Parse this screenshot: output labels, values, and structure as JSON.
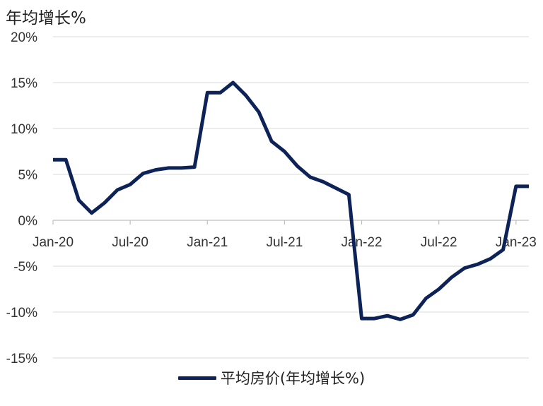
{
  "chart_data": {
    "type": "line",
    "unit_label": "年均增长%",
    "xlabel": "",
    "ylabel": "",
    "ylim": [
      -15,
      20
    ],
    "yticks": [
      20,
      15,
      10,
      5,
      0,
      -5,
      -10,
      -15
    ],
    "ytick_labels": [
      "20%",
      "15%",
      "10%",
      "5%",
      "0%",
      "-5%",
      "-10%",
      "-15%"
    ],
    "xtick_labels": [
      "Jan-20",
      "Jul-20",
      "Jan-21",
      "Jul-21",
      "Jan-22",
      "Jul-22",
      "Jan-23"
    ],
    "xtick_dates": [
      "2020-01",
      "2020-07",
      "2021-01",
      "2021-07",
      "2022-01",
      "2022-07",
      "2023-01"
    ],
    "grid": true,
    "legend_position": "bottom",
    "series": [
      {
        "name": "平均房价(年均增长%)",
        "color": "#0d2358",
        "x": [
          "2020-01",
          "2020-02",
          "2020-03",
          "2020-04",
          "2020-05",
          "2020-06",
          "2020-07",
          "2020-08",
          "2020-09",
          "2020-10",
          "2020-11",
          "2020-12",
          "2021-01",
          "2021-02",
          "2021-03",
          "2021-04",
          "2021-05",
          "2021-06",
          "2021-07",
          "2021-08",
          "2021-09",
          "2021-10",
          "2021-11",
          "2021-12",
          "2022-01",
          "2022-02",
          "2022-03",
          "2022-04",
          "2022-05",
          "2022-06",
          "2022-07",
          "2022-08",
          "2022-09",
          "2022-10",
          "2022-11",
          "2022-12",
          "2023-01",
          "2023-02"
        ],
        "values": [
          6.6,
          6.6,
          2.2,
          0.8,
          1.9,
          3.3,
          3.9,
          5.1,
          5.5,
          5.7,
          5.7,
          5.8,
          13.9,
          13.9,
          15.0,
          13.6,
          11.8,
          8.6,
          7.5,
          5.9,
          4.7,
          4.2,
          3.5,
          2.8,
          -10.7,
          -10.7,
          -10.4,
          -10.8,
          -10.3,
          -8.5,
          -7.5,
          -6.2,
          -5.2,
          -4.8,
          -4.2,
          -3.2,
          3.7,
          3.7
        ]
      }
    ]
  }
}
